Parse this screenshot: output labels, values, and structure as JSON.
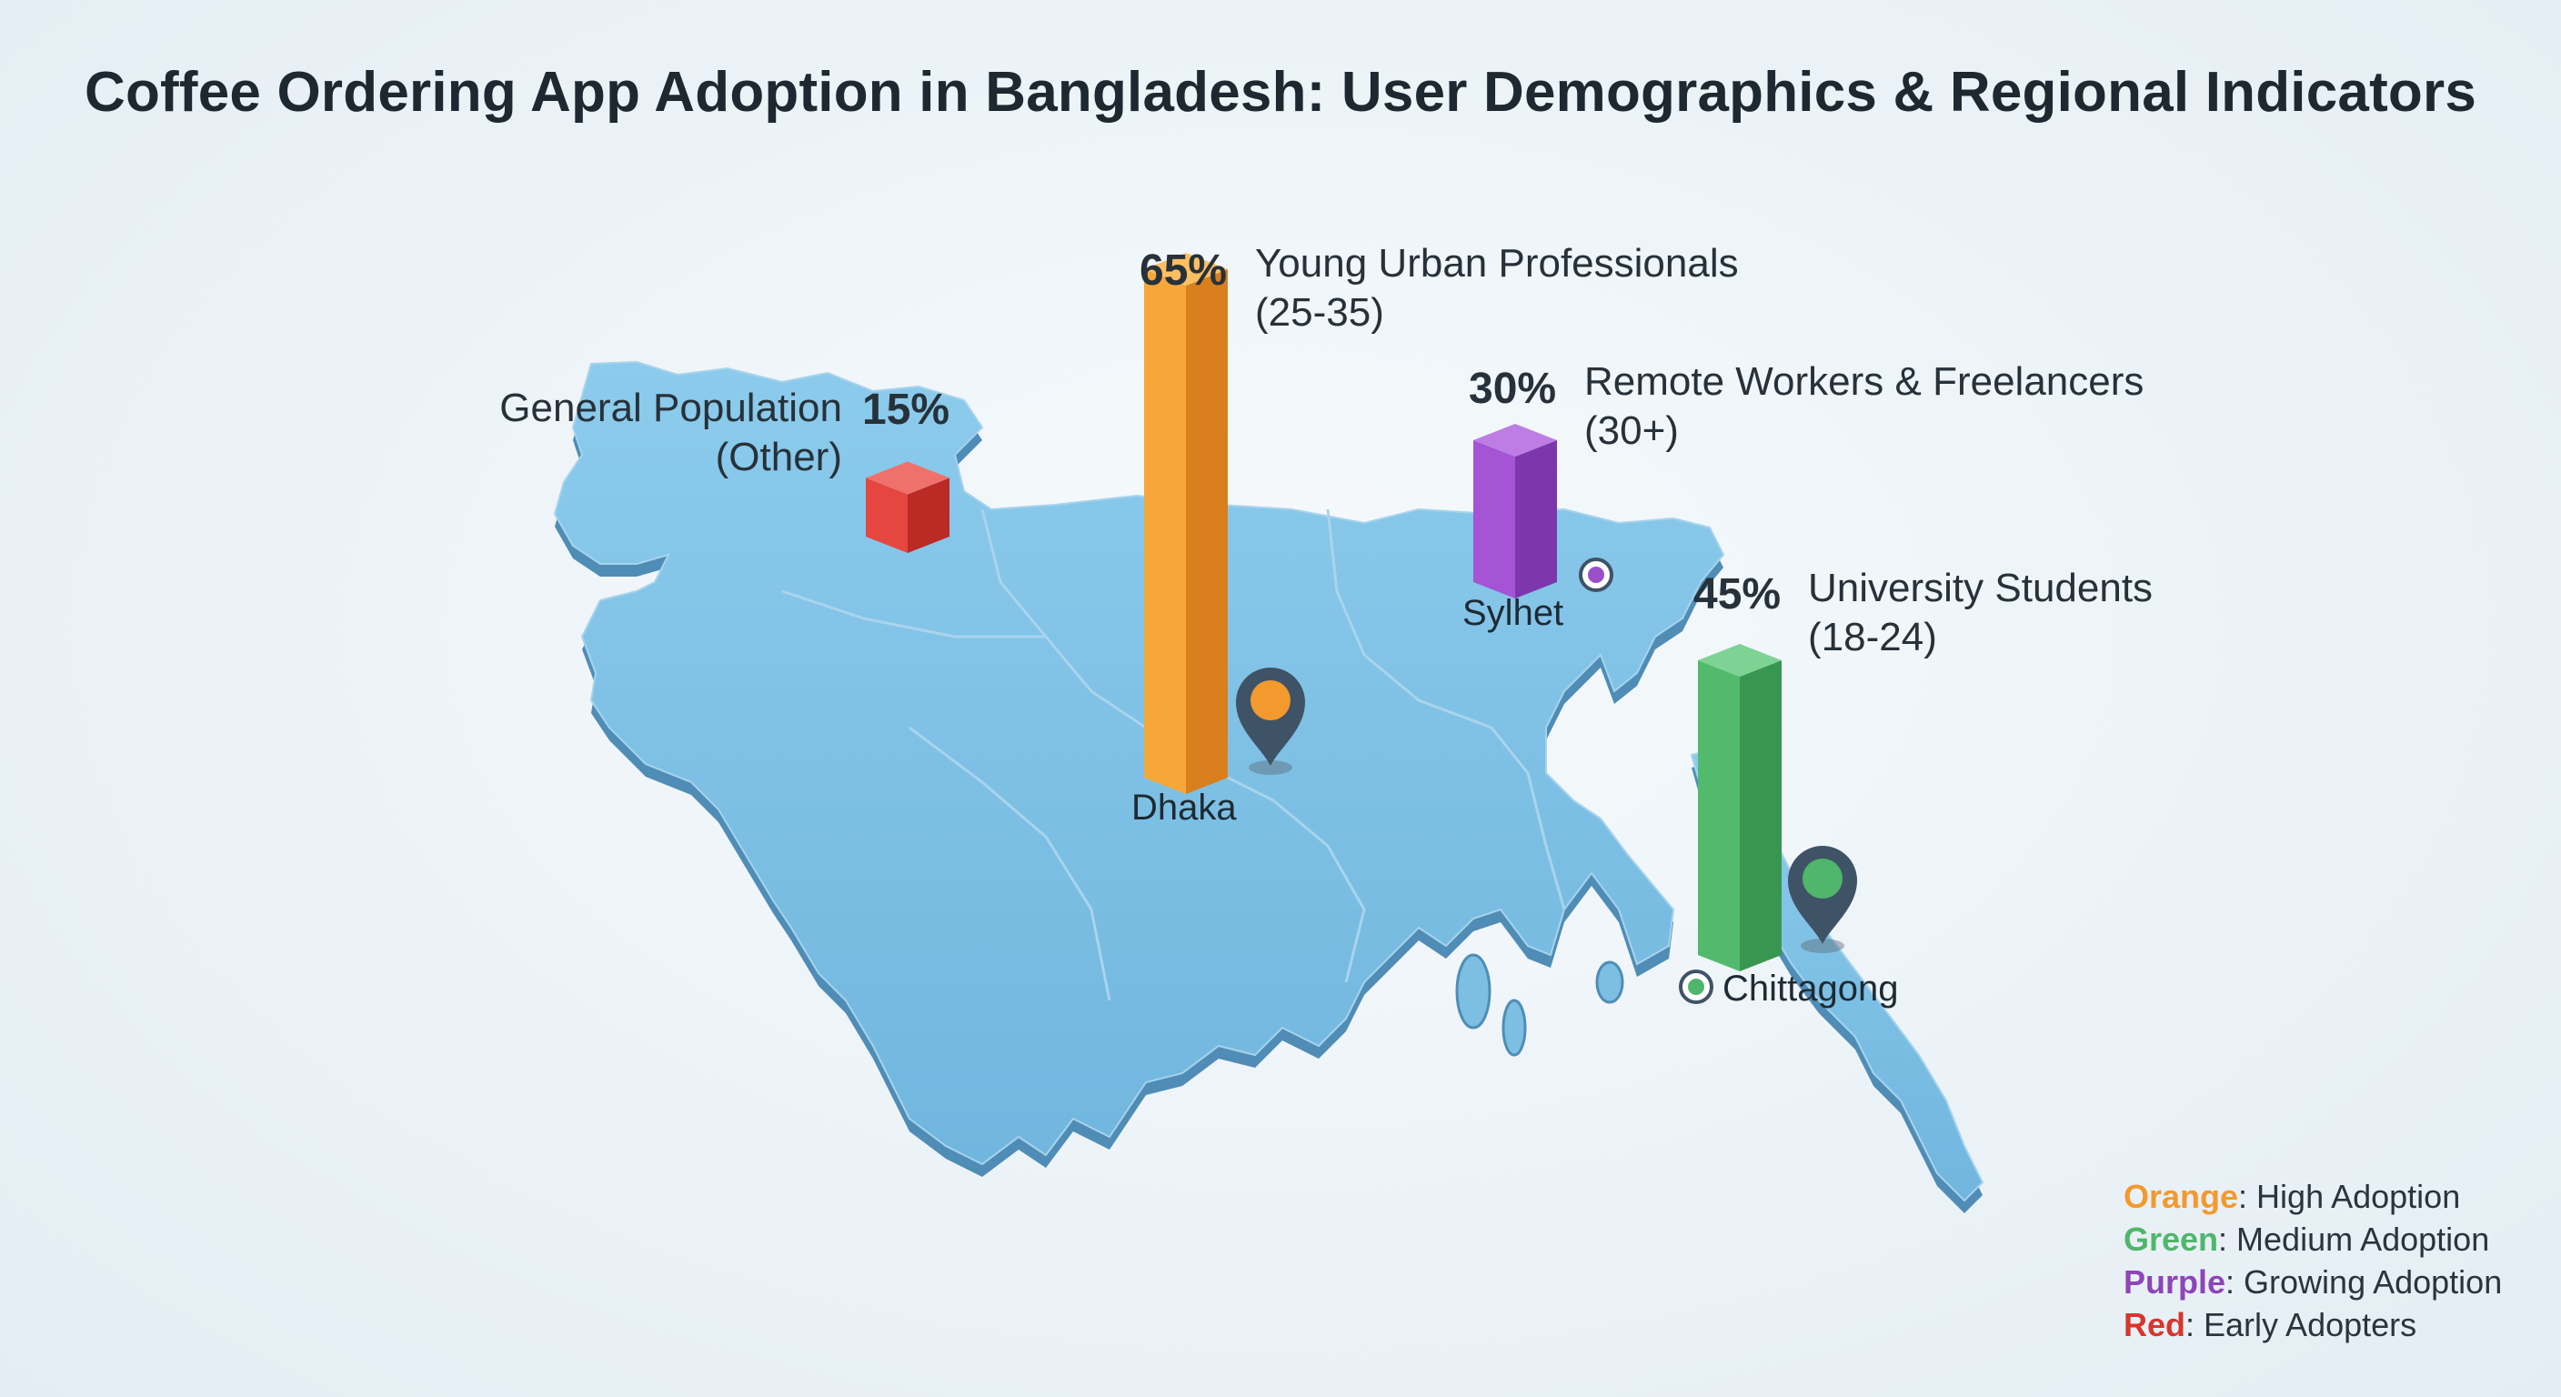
{
  "title": "Coffee Ordering App Adoption in Bangladesh: User Demographics & Regional Indicators",
  "colors": {
    "map_top": "#7cbfe3",
    "map_side": "#4f8db6",
    "orange": "#f29a2e",
    "green": "#4fb66b",
    "purple": "#9b4fc9",
    "red": "#e0403a"
  },
  "segments": [
    {
      "id": "young-professionals",
      "percent": "65%",
      "label_line1": "Young Urban Professionals",
      "label_line2": "(25-35)",
      "value": 65,
      "color": "orange"
    },
    {
      "id": "remote-workers",
      "percent": "30%",
      "label_line1": "Remote Workers & Freelancers",
      "label_line2": "(30+)",
      "value": 30,
      "color": "purple"
    },
    {
      "id": "university-students",
      "percent": "45%",
      "label_line1": "University Students",
      "label_line2": "(18-24)",
      "value": 45,
      "color": "green"
    },
    {
      "id": "general-population",
      "percent": "15%",
      "label_line1": "General Population",
      "label_line2": "(Other)",
      "value": 15,
      "color": "red"
    }
  ],
  "cities": {
    "dhaka": "Dhaka",
    "sylhet": "Sylhet",
    "chittagong": "Chittagong"
  },
  "legend": [
    {
      "key": "Orange",
      "text": ": High Adoption",
      "color": "#f29a2e"
    },
    {
      "key": "Green",
      "text": ": Medium Adoption",
      "color": "#4fb66b"
    },
    {
      "key": "Purple",
      "text": ": Growing Adoption",
      "color": "#8d45b8"
    },
    {
      "key": "Red",
      "text": ": Early Adopters",
      "color": "#d8352d"
    }
  ]
}
